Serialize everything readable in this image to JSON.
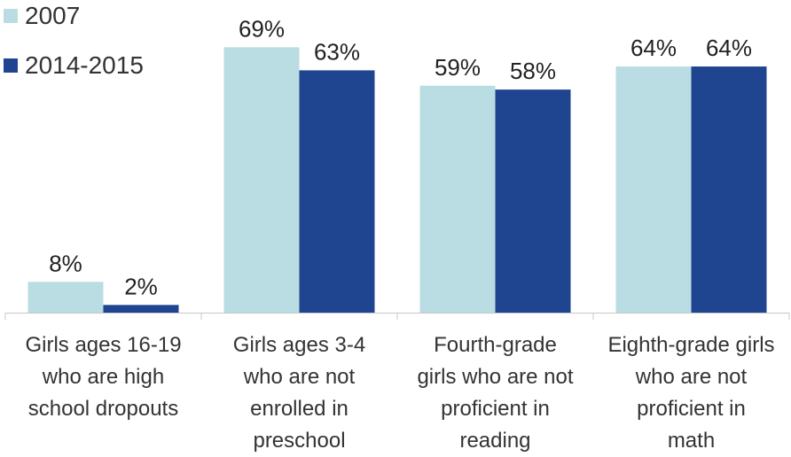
{
  "chart_data": {
    "type": "bar",
    "categories": [
      [
        "Girls ages 16-19",
        "who are high",
        "school dropouts"
      ],
      [
        "Girls ages 3-4",
        "who are not",
        "enrolled in",
        "preschool"
      ],
      [
        "Fourth-grade",
        "girls who are not",
        "proficient in",
        "reading"
      ],
      [
        "Eighth-grade girls",
        "who are not",
        "proficient in",
        "math"
      ]
    ],
    "series": [
      {
        "name": "2007",
        "color": "#b9dde2",
        "values": [
          8,
          69,
          59,
          64
        ],
        "labels": [
          "8%",
          "69%",
          "59%",
          "64%"
        ]
      },
      {
        "name": "2014-2015",
        "color": "#1f4591",
        "values": [
          2,
          63,
          58,
          64
        ],
        "labels": [
          "2%",
          "63%",
          "58%",
          "64%"
        ]
      }
    ],
    "ylim": [
      0,
      73
    ],
    "grid": false,
    "legend": "top-left",
    "xlabel": "",
    "ylabel": ""
  }
}
